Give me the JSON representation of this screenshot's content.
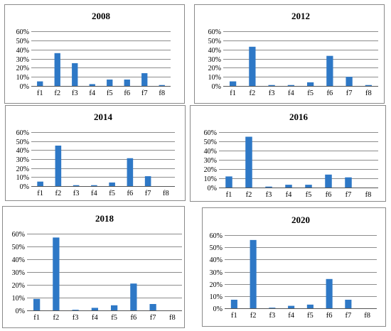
{
  "colors": {
    "bar": "#2e78c6",
    "grid": "#8c8c8c",
    "panel_border": "#8a8a8a"
  },
  "chart_data": [
    {
      "type": "bar",
      "title": "2008",
      "categories": [
        "f1",
        "f2",
        "f3",
        "f4",
        "f5",
        "f6",
        "f7",
        "f8"
      ],
      "values": [
        5,
        36,
        25,
        2,
        7,
        7,
        14,
        1
      ],
      "yticks": [
        "0%",
        "10%",
        "20%",
        "30%",
        "40%",
        "50%",
        "60%"
      ],
      "ylim": [
        0,
        60
      ],
      "grid": true,
      "legend": "none"
    },
    {
      "type": "bar",
      "title": "2012",
      "categories": [
        "f1",
        "f2",
        "f3",
        "f4",
        "f5",
        "f6",
        "f7",
        "f8"
      ],
      "values": [
        5,
        43,
        1,
        1,
        4,
        33,
        10,
        1
      ],
      "yticks": [
        "0%",
        "10%",
        "20%",
        "30%",
        "40%",
        "50%",
        "60%"
      ],
      "ylim": [
        0,
        60
      ],
      "grid": true,
      "legend": "none"
    },
    {
      "type": "bar",
      "title": "2014",
      "categories": [
        "f1",
        "f2",
        "f3",
        "f4",
        "f5",
        "f6",
        "f7",
        "f8"
      ],
      "values": [
        5,
        45,
        1,
        1,
        4,
        31,
        11,
        0
      ],
      "yticks": [
        "0%",
        "10%",
        "20%",
        "30%",
        "40%",
        "50%",
        "60%"
      ],
      "ylim": [
        0,
        60
      ],
      "grid": true,
      "legend": "none"
    },
    {
      "type": "bar",
      "title": "2016",
      "categories": [
        "f1",
        "f2",
        "f3",
        "f4",
        "f5",
        "f6",
        "f7",
        "f8"
      ],
      "values": [
        12,
        55,
        1,
        3,
        3,
        14,
        11,
        0
      ],
      "yticks": [
        "0%",
        "10%",
        "20%",
        "30%",
        "40%",
        "50%",
        "60%"
      ],
      "ylim": [
        0,
        60
      ],
      "grid": true,
      "legend": "none"
    },
    {
      "type": "bar",
      "title": "2018",
      "categories": [
        "f1",
        "f2",
        "f3",
        "f4",
        "f5",
        "f6",
        "f7",
        "f8"
      ],
      "values": [
        9,
        57,
        0.5,
        2,
        4,
        21,
        5,
        0
      ],
      "yticks": [
        "0%",
        "10%",
        "20%",
        "30%",
        "40%",
        "50%",
        "60%"
      ],
      "ylim": [
        0,
        60
      ],
      "grid": true,
      "legend": "none"
    },
    {
      "type": "bar",
      "title": "2020",
      "categories": [
        "f1",
        "f2",
        "f3",
        "f4",
        "f5",
        "f6",
        "f7",
        "f8"
      ],
      "values": [
        7,
        56,
        0.5,
        2,
        3,
        24,
        7,
        0
      ],
      "yticks": [
        "0%",
        "10%",
        "20%",
        "30%",
        "40%",
        "50%",
        "60%"
      ],
      "ylim": [
        0,
        60
      ],
      "grid": true,
      "legend": "none"
    }
  ]
}
